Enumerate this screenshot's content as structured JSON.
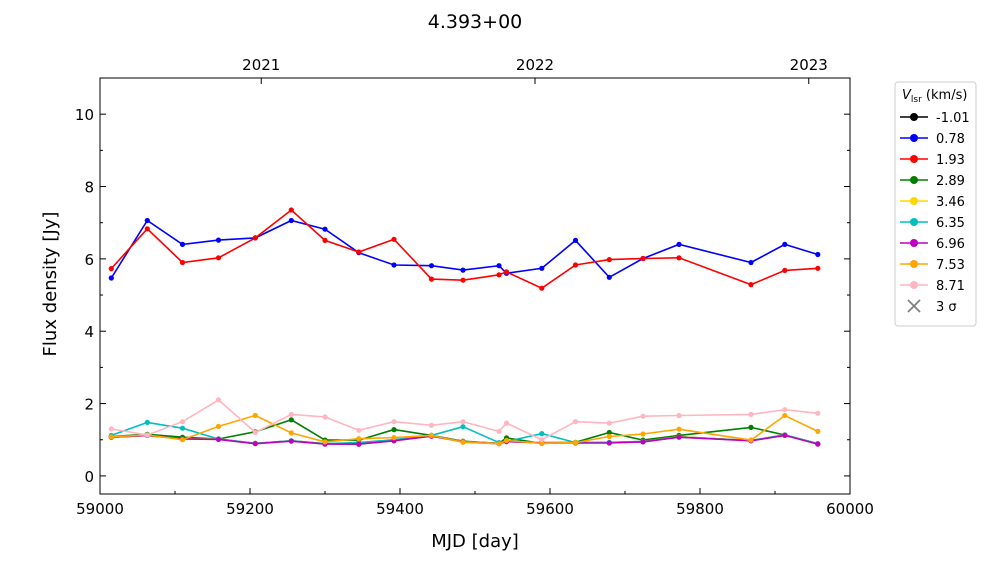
{
  "chart_data": {
    "type": "line",
    "title": "4.393+00",
    "xlabel": "MJD [day]",
    "ylabel": "Flux density [Jy]",
    "xlim": [
      59000,
      60000
    ],
    "ylim": [
      -0.5,
      11
    ],
    "x_ticks": [
      59000,
      59200,
      59400,
      59600,
      59800,
      60000
    ],
    "y_ticks": [
      0,
      2,
      4,
      6,
      8,
      10
    ],
    "top_axis": {
      "ticks": [
        {
          "x": 59215,
          "label": "2021"
        },
        {
          "x": 59580,
          "label": "2022"
        },
        {
          "x": 59945,
          "label": "2023"
        }
      ]
    },
    "grid": false,
    "legend": {
      "position": "outside-right",
      "title": "V_lsr (km/s)",
      "title_main": "V",
      "title_sub": "lsr",
      "title_rest": " (km/s)",
      "extra_marker_label": "3 σ",
      "extra_marker_color": "#808080"
    },
    "x": [
      59015,
      59063,
      59110,
      59158,
      59207,
      59255,
      59300,
      59345,
      59392,
      59442,
      59484,
      59532,
      59542,
      59589,
      59634,
      59679,
      59724,
      59772,
      59868,
      59913,
      59957
    ],
    "series": [
      {
        "name": "-1.01",
        "color": "#000000",
        "values": [
          1.07,
          1.12,
          1.03,
          1.02,
          0.9,
          0.97,
          0.89,
          0.88,
          0.98,
          1.1,
          0.95,
          0.9,
          0.95,
          0.92,
          0.92,
          0.92,
          0.95,
          1.08,
          0.98,
          1.13,
          0.89
        ]
      },
      {
        "name": "0.78",
        "color": "#0000ff",
        "values": [
          5.47,
          7.06,
          6.4,
          6.52,
          6.58,
          7.06,
          6.82,
          6.17,
          5.83,
          5.81,
          5.69,
          5.81,
          5.6,
          5.74,
          6.51,
          5.49,
          6.01,
          6.4,
          5.9,
          6.4,
          6.12
        ]
      },
      {
        "name": "1.93",
        "color": "#ff0000",
        "values": [
          5.73,
          6.83,
          5.9,
          6.03,
          6.58,
          7.35,
          6.51,
          6.19,
          6.54,
          5.44,
          5.41,
          5.56,
          5.64,
          5.19,
          5.83,
          5.98,
          6.01,
          6.03,
          5.29,
          5.68,
          5.74
        ]
      },
      {
        "name": "2.89",
        "color": "#008000",
        "values": [
          1.09,
          1.15,
          1.07,
          1.02,
          1.22,
          1.55,
          0.99,
          0.99,
          1.28,
          1.12,
          0.96,
          0.9,
          1.05,
          0.9,
          0.93,
          1.2,
          0.99,
          1.12,
          1.34,
          1.13,
          0.89
        ]
      },
      {
        "name": "3.46",
        "color": "#ffd700",
        "values": [
          1.07,
          1.12,
          1.02,
          1.02,
          0.9,
          0.97,
          0.89,
          0.9,
          0.98,
          1.1,
          0.95,
          0.9,
          0.95,
          0.92,
          0.92,
          0.92,
          0.95,
          1.08,
          0.98,
          1.13,
          0.89
        ]
      },
      {
        "name": "6.35",
        "color": "#00bfbf",
        "values": [
          1.12,
          1.48,
          1.32,
          1.02,
          0.9,
          0.97,
          0.89,
          0.92,
          1.0,
          1.12,
          1.36,
          0.92,
          0.95,
          1.17,
          0.92,
          0.93,
          0.95,
          1.07,
          0.98,
          1.13,
          0.89
        ]
      },
      {
        "name": "6.96",
        "color": "#bf00bf",
        "values": [
          1.07,
          1.12,
          1.02,
          1.01,
          0.89,
          0.96,
          0.88,
          0.88,
          0.97,
          1.1,
          0.94,
          0.89,
          0.95,
          0.91,
          0.91,
          0.91,
          0.94,
          1.07,
          0.97,
          1.12,
          0.88
        ]
      },
      {
        "name": "7.53",
        "color": "#ffa500",
        "values": [
          1.08,
          1.13,
          1.0,
          1.37,
          1.67,
          1.19,
          0.94,
          1.03,
          1.06,
          1.12,
          0.93,
          0.89,
          0.98,
          0.9,
          0.92,
          1.09,
          1.16,
          1.29,
          0.99,
          1.67,
          1.23
        ]
      },
      {
        "name": "8.71",
        "color": "#ffb6c1",
        "values": [
          1.3,
          1.13,
          1.5,
          2.1,
          1.2,
          1.7,
          1.63,
          1.26,
          1.5,
          1.4,
          1.5,
          1.23,
          1.46,
          1.0,
          1.5,
          1.46,
          1.65,
          1.67,
          1.7,
          1.83,
          1.73
        ]
      }
    ]
  }
}
